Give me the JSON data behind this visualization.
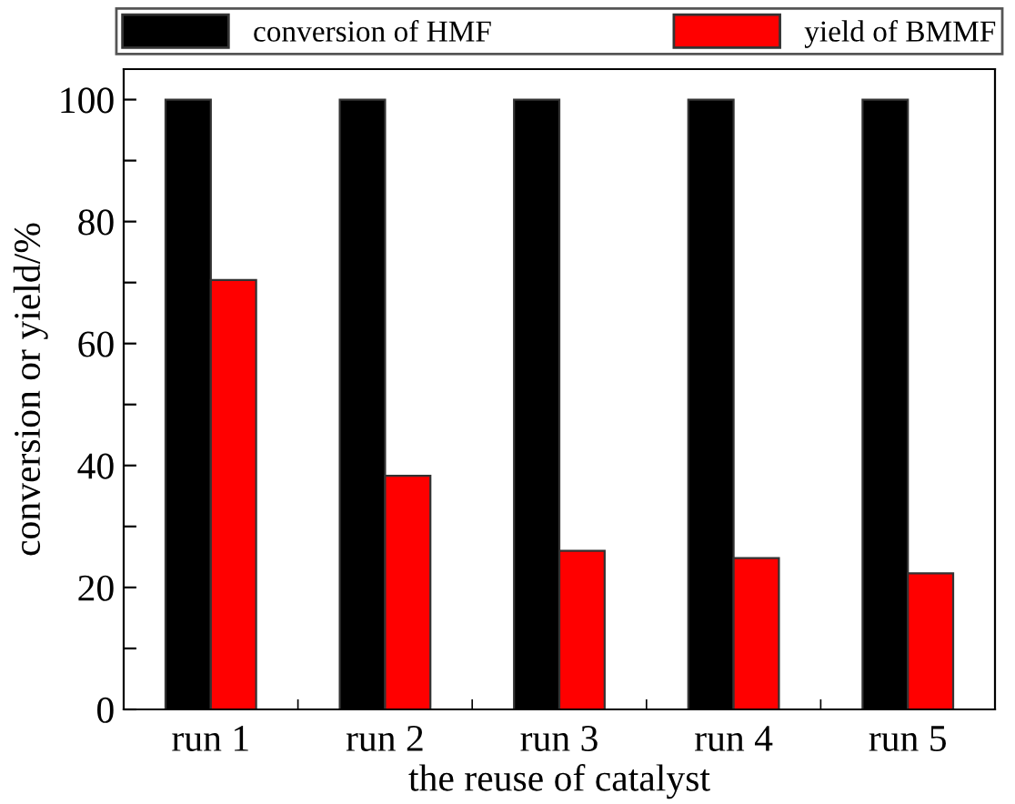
{
  "chart_data": {
    "type": "bar",
    "xlabel": "the reuse of catalyst",
    "ylabel": "conversion or yield/%",
    "categories": [
      "run 1",
      "run 2",
      "run 3",
      "run 4",
      "run 5"
    ],
    "series": [
      {
        "name": "conversion of HMF",
        "color": "#000000",
        "values": [
          100,
          100,
          100,
          100,
          100
        ]
      },
      {
        "name": "yield of BMMF",
        "color": "#ff0000",
        "values": [
          70.4,
          38.3,
          26.0,
          24.8,
          22.3
        ]
      }
    ],
    "ylim": [
      0,
      105
    ],
    "yticks": [
      0,
      {
        "value": 10,
        "label": null
      },
      20,
      {
        "value": 30,
        "label": null
      },
      40,
      {
        "value": 50,
        "label": null
      },
      60,
      {
        "value": 70,
        "label": null
      },
      80,
      {
        "value": 90,
        "label": null
      },
      100
    ],
    "grid": false,
    "legend": "top"
  }
}
